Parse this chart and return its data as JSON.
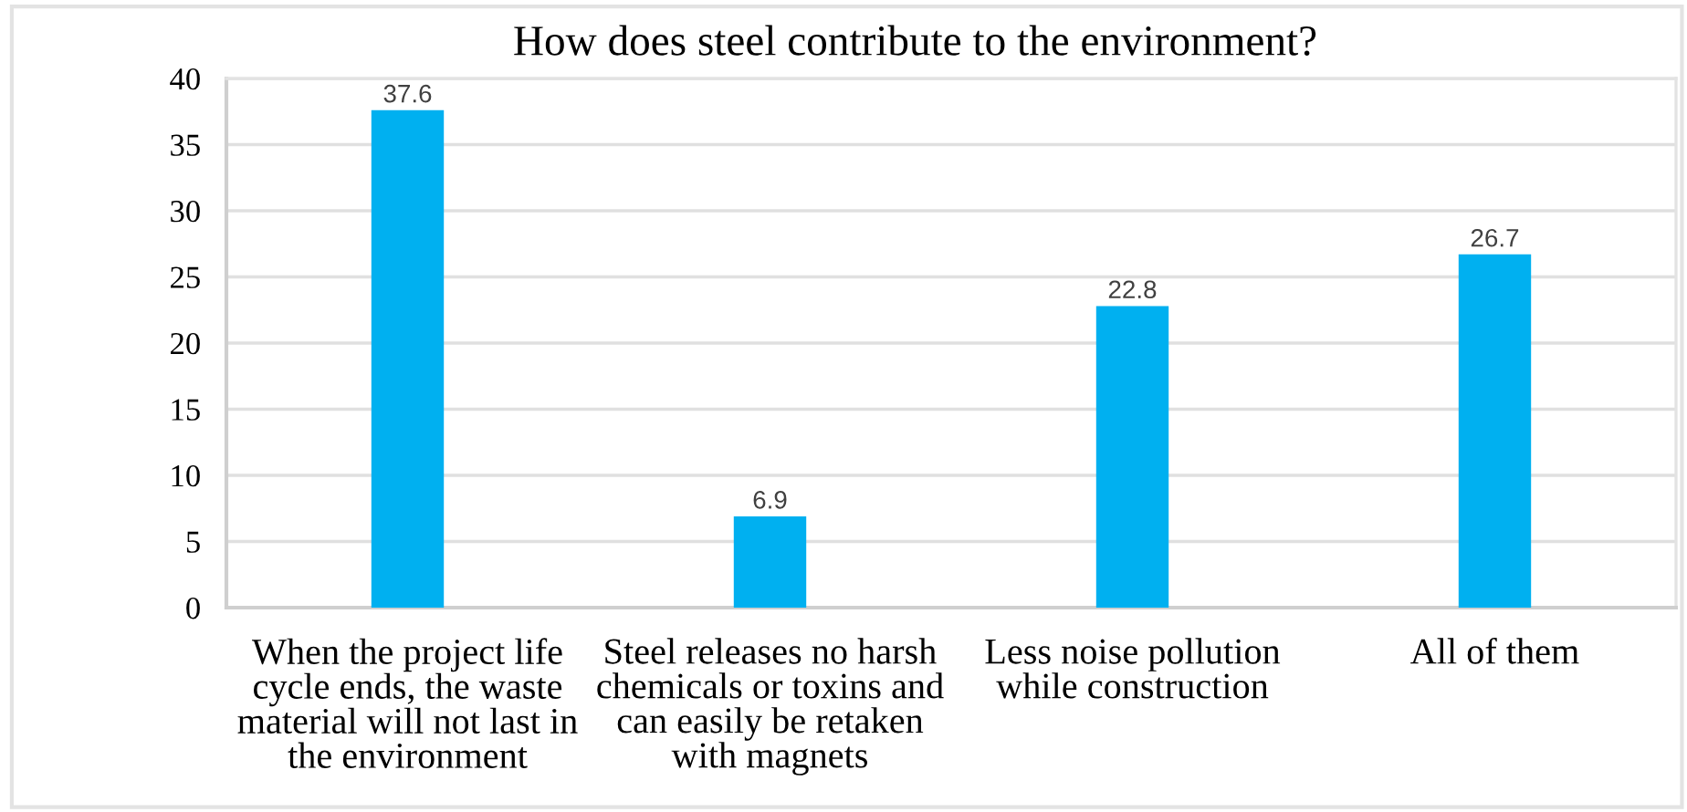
{
  "chart_data": {
    "type": "bar",
    "title": "How does steel contribute to the environment?",
    "categories": [
      "When the project life\ncycle ends, the waste\nmaterial will not last in\nthe environment",
      "Steel releases no harsh\nchemicals or toxins and\ncan easily be retaken\nwith magnets",
      "Less noise pollution\nwhile construction",
      "All of them"
    ],
    "values": [
      37.6,
      6.9,
      22.8,
      26.7
    ],
    "color": "#00b0f0",
    "ylim": [
      0,
      40
    ],
    "yticks": [
      0,
      5,
      10,
      15,
      20,
      25,
      30,
      35,
      40
    ],
    "grid": "y",
    "data_labels": true
  }
}
